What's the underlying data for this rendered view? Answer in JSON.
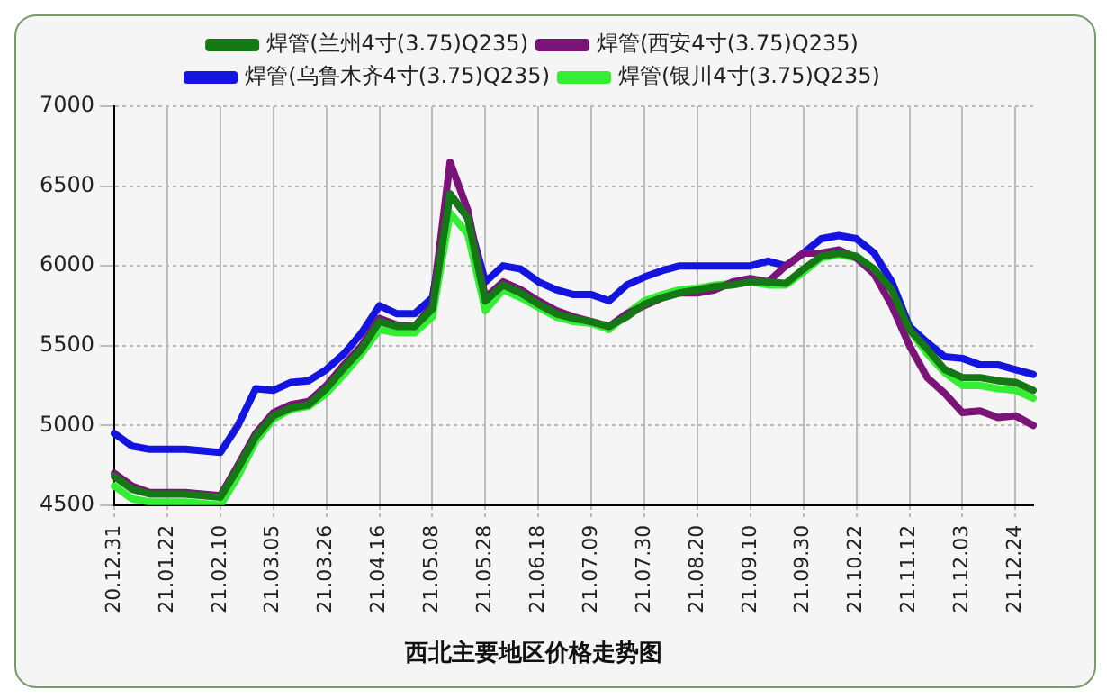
{
  "chart_data": {
    "type": "line",
    "title": "西北主要地区价格走势图",
    "categories": [
      "20.12.31",
      null,
      null,
      "21.01.22",
      null,
      null,
      "21.02.10",
      null,
      null,
      "21.03.05",
      null,
      null,
      "21.03.26",
      null,
      null,
      "21.04.16",
      null,
      null,
      "21.05.08",
      null,
      null,
      "21.05.28",
      null,
      null,
      "21.06.18",
      null,
      null,
      "21.07.09",
      null,
      null,
      "21.07.30",
      null,
      null,
      "21.08.20",
      null,
      null,
      "21.09.10",
      null,
      null,
      "21.09.30",
      null,
      null,
      "21.10.22",
      null,
      null,
      "21.11.12",
      null,
      null,
      "21.12.03",
      null,
      null,
      "21.12.24",
      null
    ],
    "series": [
      {
        "name": "焊管(兰州4寸(3.75)Q235)",
        "color": "#147814",
        "values": [
          4680,
          4600,
          4570,
          4570,
          4570,
          4560,
          4550,
          4730,
          4930,
          5060,
          5110,
          5130,
          5230,
          5360,
          5480,
          5650,
          5620,
          5620,
          5730,
          6450,
          6300,
          5780,
          5880,
          5830,
          5760,
          5700,
          5670,
          5650,
          5620,
          5680,
          5760,
          5800,
          5830,
          5850,
          5870,
          5880,
          5900,
          5900,
          5890,
          5980,
          6060,
          6080,
          6060,
          5980,
          5850,
          5600,
          5480,
          5350,
          5300,
          5300,
          5280,
          5270,
          5220
        ]
      },
      {
        "name": "焊管(西安4寸(3.75)Q235)",
        "color": "#7a1478",
        "values": [
          4700,
          4620,
          4580,
          4580,
          4580,
          4570,
          4560,
          4750,
          4950,
          5080,
          5130,
          5150,
          5250,
          5380,
          5500,
          5670,
          5630,
          5620,
          5750,
          6650,
          6350,
          5800,
          5900,
          5850,
          5780,
          5720,
          5680,
          5650,
          5620,
          5700,
          5750,
          5800,
          5830,
          5830,
          5850,
          5900,
          5920,
          5900,
          6000,
          6080,
          6080,
          6100,
          6050,
          5950,
          5750,
          5500,
          5300,
          5200,
          5080,
          5090,
          5050,
          5060,
          5000
        ]
      },
      {
        "name": "焊管(乌鲁木齐4寸(3.75)Q235)",
        "color": "#1414e0",
        "values": [
          4950,
          4870,
          4850,
          4850,
          4850,
          4840,
          4830,
          5000,
          5230,
          5220,
          5270,
          5280,
          5350,
          5450,
          5580,
          5750,
          5700,
          5700,
          5800,
          6450,
          6300,
          5900,
          6000,
          5980,
          5900,
          5850,
          5820,
          5820,
          5780,
          5880,
          5930,
          5970,
          6000,
          6000,
          6000,
          6000,
          6000,
          6030,
          6000,
          6080,
          6170,
          6190,
          6170,
          6080,
          5900,
          5620,
          5520,
          5430,
          5420,
          5380,
          5380,
          5350,
          5320
        ]
      },
      {
        "name": "焊管(银川4寸(3.75)Q235)",
        "color": "#33ee33",
        "values": [
          4620,
          4540,
          4520,
          4520,
          4520,
          4510,
          4500,
          4680,
          4900,
          5040,
          5100,
          5120,
          5200,
          5320,
          5450,
          5600,
          5580,
          5580,
          5680,
          6330,
          6200,
          5720,
          5850,
          5800,
          5740,
          5680,
          5650,
          5640,
          5600,
          5700,
          5780,
          5820,
          5850,
          5860,
          5880,
          5890,
          5900,
          5880,
          5880,
          5960,
          6050,
          6070,
          6050,
          5970,
          5850,
          5600,
          5450,
          5330,
          5250,
          5250,
          5230,
          5220,
          5170
        ]
      }
    ],
    "ylim": [
      4500,
      7000
    ],
    "yticks": [
      4500,
      5000,
      5500,
      6000,
      6500,
      7000
    ],
    "grid": true,
    "legend": "top",
    "marker": "none",
    "line_style": "solid"
  }
}
